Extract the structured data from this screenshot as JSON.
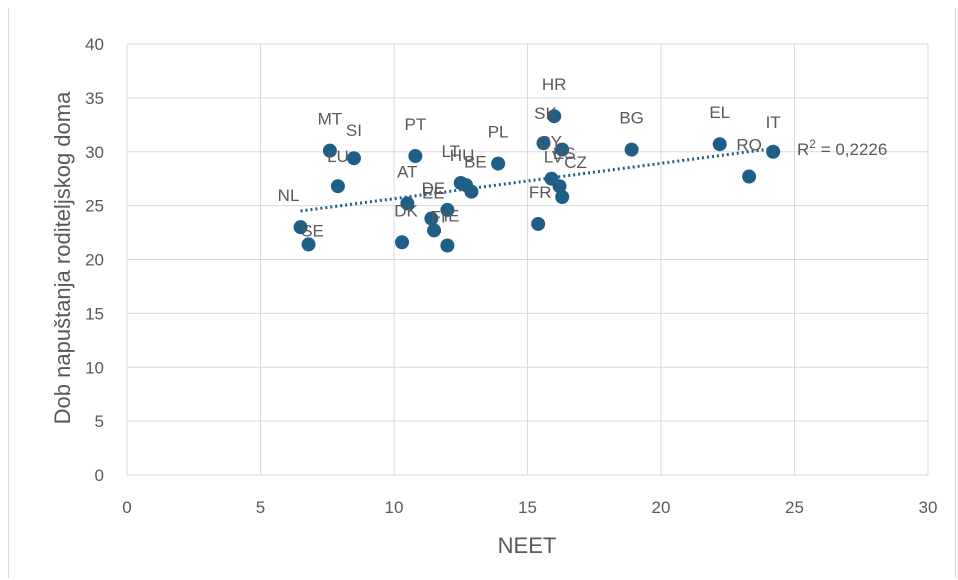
{
  "chart_data": {
    "type": "scatter",
    "title": "",
    "xlabel": "NEET",
    "ylabel": "Dob napuštanja roditeljskog doma",
    "xlim": [
      0,
      30
    ],
    "ylim": [
      0,
      40
    ],
    "xticks": [
      0,
      5,
      10,
      15,
      20,
      25,
      30
    ],
    "yticks": [
      0,
      5,
      10,
      15,
      20,
      25,
      30,
      35,
      40
    ],
    "grid": true,
    "legend": "none",
    "marker_color": "#1f5f86",
    "trendline": {
      "type": "linear",
      "style": "dotted",
      "color": "#1f5f86",
      "x_range": [
        6.5,
        24.2
      ],
      "y_start": 24.5,
      "y_end": 30.3,
      "r2_prefix": "R",
      "r2_exponent": "2",
      "r2_value": " = 0,2226"
    },
    "points": [
      {
        "label": "NL",
        "x": 6.5,
        "y": 23.0
      },
      {
        "label": "SE",
        "x": 6.8,
        "y": 21.4
      },
      {
        "label": "MT",
        "x": 7.6,
        "y": 30.1
      },
      {
        "label": "LU",
        "x": 7.9,
        "y": 26.8
      },
      {
        "label": "SI",
        "x": 8.5,
        "y": 29.4
      },
      {
        "label": "DK",
        "x": 10.3,
        "y": 21.6
      },
      {
        "label": "AT",
        "x": 10.5,
        "y": 25.2
      },
      {
        "label": "PT",
        "x": 10.8,
        "y": 29.6
      },
      {
        "label": "EE",
        "x": 11.4,
        "y": 23.8
      },
      {
        "label": "FI",
        "x": 11.5,
        "y": 22.7
      },
      {
        "label": "DE",
        "x": 12.0,
        "y": 24.6
      },
      {
        "label": "IE",
        "x": 12.0,
        "y": 21.3
      },
      {
        "label": "LT",
        "x": 12.5,
        "y": 27.1
      },
      {
        "label": "HU",
        "x": 12.7,
        "y": 26.9
      },
      {
        "label": "BE",
        "x": 12.9,
        "y": 26.3
      },
      {
        "label": "PL",
        "x": 13.9,
        "y": 28.9
      },
      {
        "label": "FR",
        "x": 15.4,
        "y": 23.3
      },
      {
        "label": "SK",
        "x": 15.6,
        "y": 30.8
      },
      {
        "label": "LV",
        "x": 15.9,
        "y": 27.5
      },
      {
        "label": "HR",
        "x": 16.0,
        "y": 33.3
      },
      {
        "label": "CZ",
        "x": 16.2,
        "y": 26.8
      },
      {
        "label": "CY",
        "x": 16.3,
        "y": 30.2
      },
      {
        "label": "ES",
        "x": 16.3,
        "y": 25.8
      },
      {
        "label": "BG",
        "x": 18.9,
        "y": 30.2
      },
      {
        "label": "EL",
        "x": 22.2,
        "y": 30.7
      },
      {
        "label": "RO",
        "x": 23.3,
        "y": 27.7
      },
      {
        "label": "IT",
        "x": 24.2,
        "y": 30.0
      }
    ]
  }
}
